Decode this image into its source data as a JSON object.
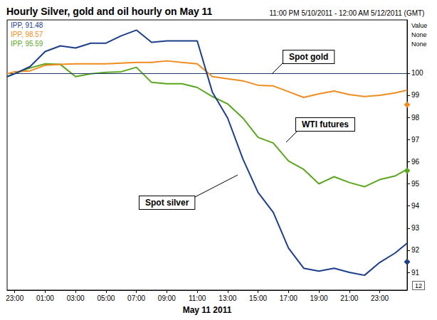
{
  "chart_data": {
    "type": "line",
    "title": "Hourly Silver, gold and oil hourly on May 11",
    "subtitle": "11:00 PM 5/10/2011 - 12:00 AM 5/12/2011 (GMT)",
    "x_label": "May 11 2011",
    "x": [
      22.5,
      23,
      24,
      25,
      26,
      27,
      28,
      29,
      30,
      31,
      32,
      33,
      34,
      35,
      36,
      37,
      38,
      39,
      40,
      41,
      42,
      43,
      44,
      45,
      46,
      47,
      48,
      48.8
    ],
    "series": [
      {
        "name": "IPP, 91.48",
        "color": "#1c3f8c",
        "current": 91.48,
        "values": [
          99.84,
          99.97,
          100.29,
          100.97,
          101.23,
          101.13,
          101.35,
          101.35,
          101.68,
          101.94,
          101.39,
          101.45,
          101.45,
          101.45,
          99.13,
          97.97,
          96.13,
          94.61,
          93.71,
          92.1,
          91.19,
          91.06,
          91.19,
          91.0,
          90.87,
          91.45,
          91.87,
          92.32
        ]
      },
      {
        "name": "IPP, 98.57",
        "color": "#f08c1e",
        "current": 98.57,
        "values": [
          99.97,
          100.06,
          100.1,
          100.35,
          100.39,
          100.42,
          100.42,
          100.42,
          100.45,
          100.48,
          100.48,
          100.55,
          100.48,
          100.42,
          99.84,
          99.74,
          99.65,
          99.45,
          99.42,
          99.16,
          98.9,
          99.06,
          99.19,
          99.03,
          98.94,
          99.0,
          99.1,
          99.23
        ]
      },
      {
        "name": "IPP, 95.59",
        "color": "#5aa61e",
        "current": 95.59,
        "values": [
          99.84,
          99.97,
          100.23,
          100.42,
          100.39,
          99.84,
          99.97,
          100.03,
          100.06,
          100.26,
          99.58,
          99.52,
          99.52,
          99.35,
          98.94,
          98.61,
          97.97,
          97.1,
          96.84,
          96.03,
          95.65,
          95.0,
          95.32,
          95.06,
          94.87,
          95.19,
          95.35,
          95.65
        ]
      }
    ],
    "xlim": [
      22.5,
      48.8
    ],
    "xticks": [
      {
        "value": 23,
        "label": "23:00"
      },
      {
        "value": 25,
        "label": "01:00"
      },
      {
        "value": 27,
        "label": "03:00"
      },
      {
        "value": 29,
        "label": "05:00"
      },
      {
        "value": 31,
        "label": "07:00"
      },
      {
        "value": 33,
        "label": "09:00"
      },
      {
        "value": 35,
        "label": "11:00"
      },
      {
        "value": 37,
        "label": "13:00"
      },
      {
        "value": 39,
        "label": "15:00"
      },
      {
        "value": 41,
        "label": "17:00"
      },
      {
        "value": 43,
        "label": "19:00"
      },
      {
        "value": 45,
        "label": "21:00"
      },
      {
        "value": 47,
        "label": "23:00"
      }
    ],
    "ylim": [
      90.2,
      102.4
    ],
    "yticks": [
      91,
      92,
      93,
      94,
      95,
      96,
      97,
      98,
      99,
      100
    ],
    "hline": 100,
    "grid": false,
    "annotations": [
      "Spot gold",
      "WTI futures",
      "Spot silver"
    ],
    "side_text": [
      "Value",
      "None",
      "None"
    ],
    "page_label": "12"
  }
}
